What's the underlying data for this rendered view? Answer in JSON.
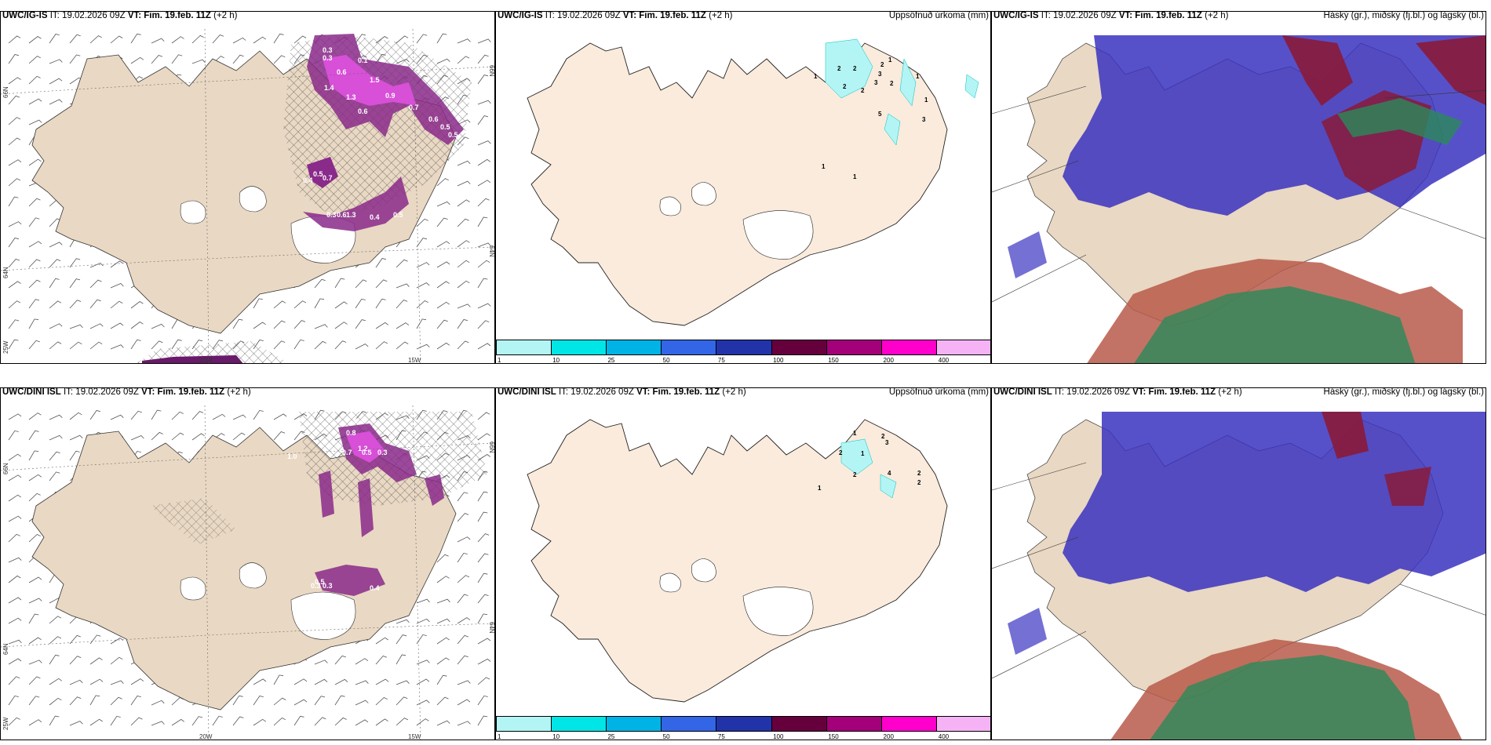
{
  "rows": [
    {
      "model": "UWC/IG-IS",
      "it_label": "IT:",
      "it_value": "19.02.2026 09Z",
      "vt_label": "VT:",
      "vt_value": "Fim. 19.feb. 11Z",
      "lead": "(+2 h)",
      "precip_title": "Uppsöfnuð úrkoma (mm)",
      "cloud_title": "Háský (gr.), miðský (fj.bl.) og lágský (bl.)",
      "precip_labels": [
        "2",
        "2",
        "2",
        "1",
        "3",
        "2",
        "3",
        "2",
        "2",
        "1",
        "5",
        "1",
        "3",
        "1",
        "1",
        "1"
      ],
      "wind_labels": [
        "0.3",
        "0.3",
        "0.1",
        "0.6",
        "1.4",
        "1.5",
        "0.9",
        "1.3",
        "0.6",
        "0.4",
        "0.5",
        "0.7",
        "0.3",
        "0.6",
        "1.3",
        "0.4",
        "0.5",
        "0.7",
        "0.6",
        "0.5",
        "0.5"
      ]
    },
    {
      "model": "UWC/DINI ISL",
      "it_label": "IT:",
      "it_value": "19.02.2026 09Z",
      "vt_label": "VT:",
      "vt_value": "Fim. 19.feb. 11Z",
      "lead": "(+2 h)",
      "precip_title": "Uppsöfnuð úrkoma (mm)",
      "cloud_title": "Háský (gr.), miðský (fj.bl.) og lágský (bl.)",
      "precip_labels": [
        "1",
        "2",
        "1",
        "2",
        "3",
        "2",
        "1",
        "4",
        "2",
        "2"
      ],
      "wind_labels": [
        "1.0",
        "0.4",
        "0.8",
        "1.2",
        "0.7",
        "0.5",
        "0.3",
        "0.5",
        "0.4",
        "0.3",
        "0.3"
      ]
    }
  ],
  "axis_labels": {
    "lat_66": "66N",
    "lat_64": "64N",
    "lon_25": "25W",
    "lon_20": "20W",
    "lon_15": "15W"
  },
  "colorbar": {
    "ticks": [
      "1",
      "10",
      "25",
      "50",
      "75",
      "100",
      "150",
      "200",
      "400"
    ],
    "colors": [
      "#b3f5f5",
      "#00e6e6",
      "#00b3e6",
      "#3366e6",
      "#2233aa",
      "#66003d",
      "#a3007a",
      "#ff00cc",
      "#f5b3f5"
    ]
  },
  "colors": {
    "land": "#e9d8c3",
    "land_light": "#faebdc",
    "precip_purple": "#8a2a8a",
    "precip_pink": "#d84fd8",
    "high_cloud_green": "#2a8a5a",
    "mid_cloud_red": "#8a1a3a",
    "low_cloud_blue": "#3a33c0"
  }
}
